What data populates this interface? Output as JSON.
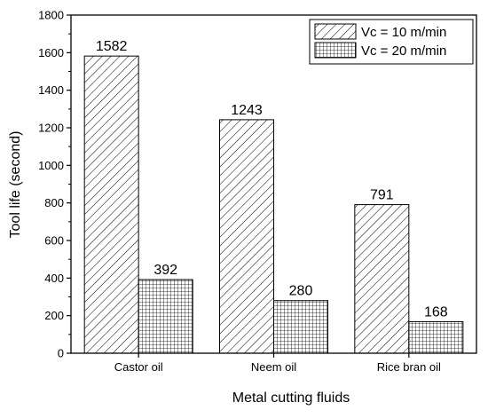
{
  "chart_data": {
    "type": "bar",
    "categories": [
      "Castor oil",
      "Neem oil",
      "Rice bran oil"
    ],
    "series": [
      {
        "name": "Vc = 10 m/min",
        "values": [
          1582,
          1243,
          791
        ],
        "pattern": "diagonal-hatch"
      },
      {
        "name": "Vc = 20 m/min",
        "values": [
          392,
          280,
          168
        ],
        "pattern": "grid-hatch"
      }
    ],
    "data_labels": [
      [
        "1582",
        "1243",
        "791"
      ],
      [
        "392",
        "280",
        "168"
      ]
    ],
    "xlabel": "Metal cutting fluids",
    "ylabel": "Tool life (second)",
    "ylim": [
      0,
      1800
    ],
    "yticks": [
      "0",
      "200",
      "400",
      "600",
      "800",
      "1000",
      "1200",
      "1400",
      "1600",
      "1800"
    ],
    "grid": false,
    "legend_position": "top-right",
    "colors": {
      "bar_fill": "#ffffff",
      "stroke": "#000000"
    }
  }
}
